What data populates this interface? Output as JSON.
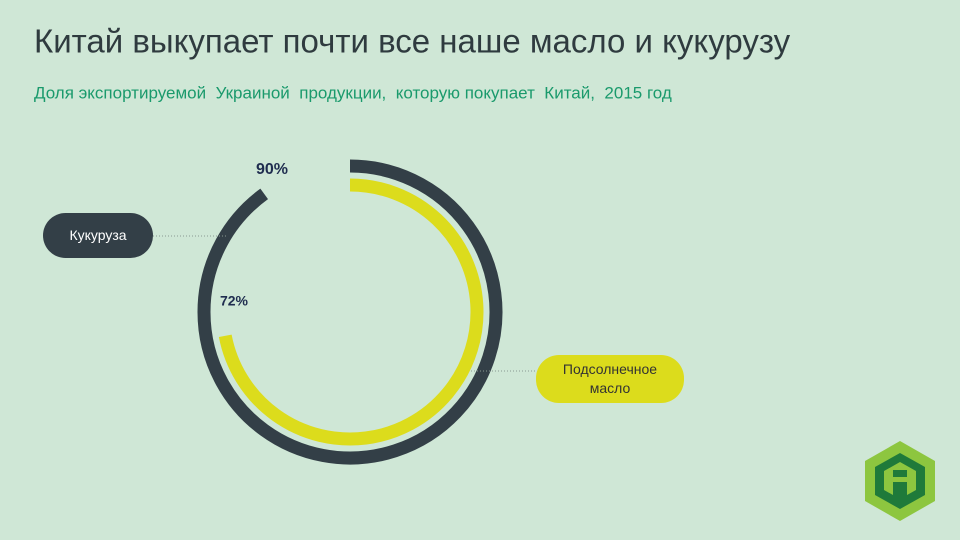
{
  "chart_data": {
    "type": "radial_bar",
    "title": "Китай выкупает почти все наше масло и кукурузу",
    "subtitle": "Доля экспортируемой  Украиной  продукции,  которую покупает  Китай,  2015 год",
    "ylim": [
      0,
      100
    ],
    "series": [
      {
        "name": "Кукуруза",
        "color": "#333f47",
        "values": [
          90
        ],
        "value_labels": [
          "90%"
        ]
      },
      {
        "name": "Подсолнечное масло",
        "color": "#dcdc1c",
        "values": [
          72
        ],
        "value_labels": [
          "72%"
        ]
      }
    ]
  }
}
